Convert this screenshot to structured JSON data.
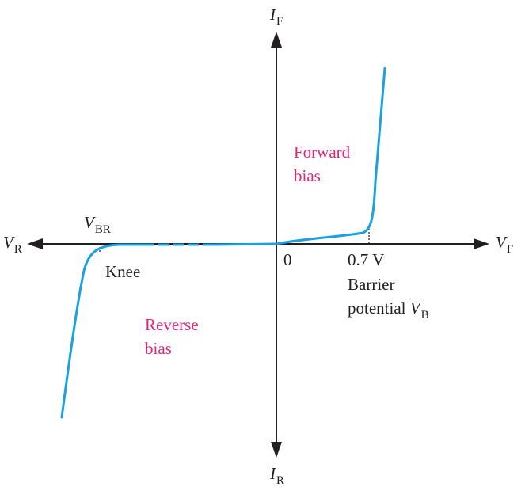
{
  "axes": {
    "x_positive": {
      "symbol": "V",
      "subscript": "F"
    },
    "x_negative": {
      "symbol": "V",
      "subscript": "R"
    },
    "y_positive": {
      "symbol": "I",
      "subscript": "F"
    },
    "y_negative": {
      "symbol": "I",
      "subscript": "R"
    },
    "origin": "0"
  },
  "labels": {
    "breakdown": {
      "symbol": "V",
      "subscript": "BR"
    },
    "knee": "Knee",
    "barrier_value": "0.7 V",
    "barrier_line1": "Barrier",
    "barrier_line2_text": "potential ",
    "barrier_symbol": {
      "symbol": "V",
      "subscript": "B"
    }
  },
  "regions": {
    "forward_line1": "Forward",
    "forward_line2": "bias",
    "reverse_line1": "Reverse",
    "reverse_line2": "bias"
  },
  "colors": {
    "curve": "#1ba1e2",
    "region_text": "#e6227a",
    "axis": "#231f20"
  },
  "icons": {
    "axis_arrowheads": "arrow-icon"
  }
}
